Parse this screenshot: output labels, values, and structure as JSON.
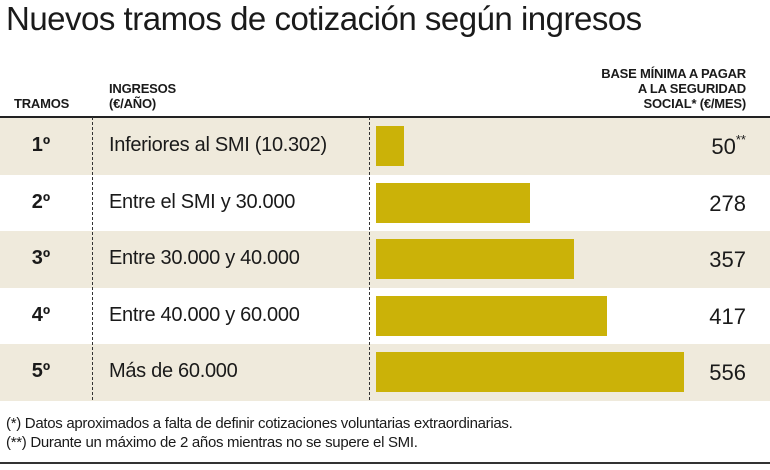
{
  "chart_data": {
    "type": "bar",
    "title": "Nuevos tramos de cotización según ingresos",
    "columns": [
      "TRAMOS",
      "INGRESOS (€/AÑO)",
      "BASE MÍNIMA A PAGAR A LA SEGURIDAD SOCIAL* (€/MES)"
    ],
    "header": {
      "tramos": "TRAMOS",
      "ingresos_1": "INGRESOS",
      "ingresos_2": "(€/AÑO)",
      "base_1": "BASE MÍNIMA A PAGAR",
      "base_2": "A LA SEGURIDAD",
      "base_3": "SOCIAL* (€/MES)"
    },
    "categories": [
      "1º",
      "2º",
      "3º",
      "4º",
      "5º"
    ],
    "incomes": [
      "Inferiores al SMI  (10.302)",
      "Entre el SMI y 30.000",
      "Entre 30.000 y 40.000",
      "Entre 40.000 y 60.000",
      "Más de 60.000"
    ],
    "values": [
      50,
      278,
      357,
      417,
      556
    ],
    "value_labels": [
      "50",
      "278",
      "357",
      "417",
      "556"
    ],
    "value_marks": [
      "**",
      "",
      "",
      "",
      ""
    ],
    "bar_color": "#cbb208",
    "row_shade_color": "#efeadc",
    "footnotes": [
      "(*) Datos aproximados a falta de definir cotizaciones voluntarias extraordinarias.",
      "(**) Durante un máximo de 2 años mientras no se supere el SMI."
    ]
  }
}
